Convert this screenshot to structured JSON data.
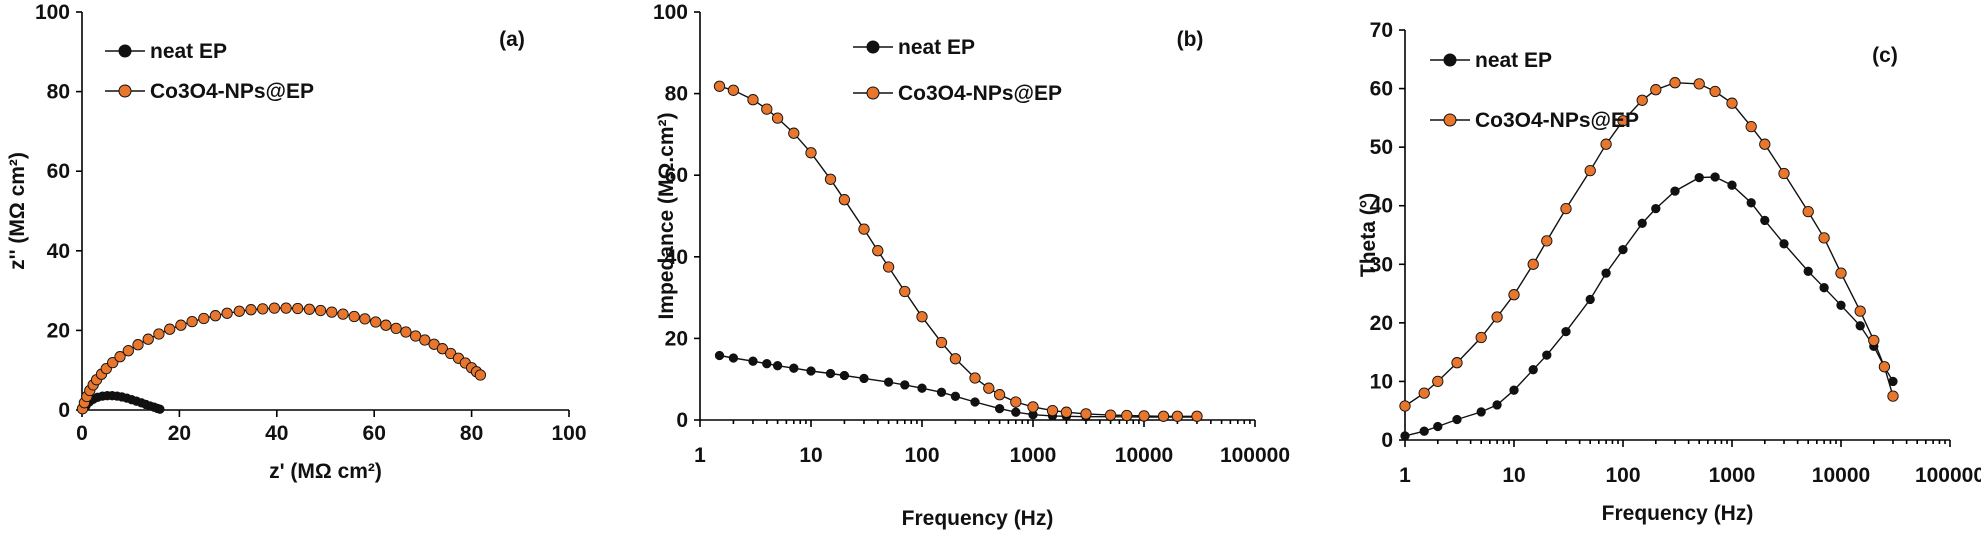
{
  "chart_data": [
    {
      "type": "scatter",
      "panel_label": "(a)",
      "xlabel": "z' (MΩ cm²)",
      "ylabel": "z'' (MΩ cm²)",
      "xlim": [
        0,
        100
      ],
      "ylim": [
        0,
        100
      ],
      "xscale": "linear",
      "xticks": [
        0,
        20,
        40,
        60,
        80,
        100
      ],
      "yticks": [
        0,
        20,
        40,
        60,
        80,
        100
      ],
      "grid": false,
      "legend": "top-left",
      "series": [
        {
          "name": "neat EP",
          "color": "#111111",
          "x": [
            0.2,
            0.8,
            1.5,
            2.3,
            3.2,
            4.2,
            5.2,
            6.2,
            7.2,
            8.2,
            9.2,
            10.2,
            11.2,
            12.2,
            13.1,
            14.0,
            14.8,
            15.5,
            16.0
          ],
          "y": [
            0.2,
            1.0,
            2.0,
            2.7,
            3.2,
            3.5,
            3.6,
            3.6,
            3.5,
            3.3,
            3.0,
            2.6,
            2.2,
            1.8,
            1.4,
            1.0,
            0.7,
            0.4,
            0.2
          ]
        },
        {
          "name": "Co3O4-NPs@EP",
          "color": "#e8762c",
          "x": [
            0.1,
            0.5,
            1.0,
            1.6,
            2.3,
            3.0,
            4.0,
            5.0,
            6.3,
            7.8,
            9.5,
            11.5,
            13.6,
            15.8,
            18.0,
            20.3,
            22.6,
            25.0,
            27.4,
            29.8,
            32.3,
            34.7,
            37.1,
            39.5,
            41.9,
            44.3,
            46.7,
            49.0,
            51.3,
            53.6,
            55.9,
            58.1,
            60.3,
            62.4,
            64.5,
            66.5,
            68.5,
            70.4,
            72.3,
            74.0,
            75.7,
            77.3,
            78.7,
            80.0,
            81.0,
            81.8
          ],
          "y": [
            0.3,
            1.8,
            3.4,
            4.9,
            6.3,
            7.6,
            9.0,
            10.4,
            11.9,
            13.4,
            14.9,
            16.4,
            17.8,
            19.1,
            20.3,
            21.3,
            22.2,
            23.0,
            23.7,
            24.3,
            24.8,
            25.2,
            25.4,
            25.6,
            25.6,
            25.5,
            25.3,
            25.0,
            24.6,
            24.1,
            23.5,
            22.9,
            22.1,
            21.3,
            20.5,
            19.6,
            18.6,
            17.6,
            16.5,
            15.4,
            14.2,
            13.0,
            11.8,
            10.6,
            9.6,
            8.8
          ]
        }
      ]
    },
    {
      "type": "scatter",
      "panel_label": "(b)",
      "xlabel": "Frequency (Hz)",
      "ylabel": "Impedance (MΩ.cm²)",
      "xlim": [
        1,
        100000
      ],
      "ylim": [
        0,
        100
      ],
      "xscale": "log",
      "xticks": [
        1,
        10,
        100,
        1000,
        10000,
        100000
      ],
      "yticks": [
        0,
        20,
        40,
        60,
        80,
        100
      ],
      "grid": false,
      "legend": "top-right",
      "series": [
        {
          "name": "neat EP",
          "color": "#111111",
          "x": [
            1.5,
            2,
            3,
            4,
            5,
            7,
            10,
            15,
            20,
            30,
            50,
            70,
            100,
            150,
            200,
            300,
            500,
            700,
            1000,
            1500,
            2000,
            3000,
            5000,
            10000,
            20000,
            30000
          ],
          "y": [
            15.8,
            15.2,
            14.4,
            13.8,
            13.3,
            12.7,
            12.0,
            11.4,
            10.9,
            10.2,
            9.3,
            8.6,
            7.8,
            6.8,
            5.8,
            4.4,
            2.8,
            1.9,
            1.3,
            1.0,
            0.9,
            0.8,
            0.8,
            0.7,
            0.7,
            0.7
          ]
        },
        {
          "name": "Co3O4-NPs@EP",
          "color": "#e8762c",
          "x": [
            1.5,
            2,
            3,
            4,
            5,
            7,
            10,
            15,
            20,
            30,
            40,
            50,
            70,
            100,
            150,
            200,
            300,
            400,
            500,
            700,
            1000,
            1500,
            2000,
            3000,
            5000,
            7000,
            10000,
            15000,
            20000,
            30000
          ],
          "y": [
            81.8,
            80.8,
            78.5,
            76.2,
            74.0,
            70.3,
            65.5,
            59.0,
            54.0,
            46.8,
            41.5,
            37.5,
            31.5,
            25.3,
            19.0,
            15.0,
            10.3,
            7.8,
            6.2,
            4.4,
            3.2,
            2.3,
            1.9,
            1.5,
            1.2,
            1.1,
            1.0,
            0.9,
            0.9,
            0.9
          ]
        }
      ]
    },
    {
      "type": "scatter",
      "panel_label": "(c)",
      "xlabel": "Frequency (Hz)",
      "ylabel": "Theta (°)",
      "xlim": [
        1,
        100000
      ],
      "ylim": [
        0,
        70
      ],
      "xscale": "log",
      "xticks": [
        1,
        10,
        100,
        1000,
        10000,
        100000
      ],
      "yticks": [
        0,
        10,
        20,
        30,
        40,
        50,
        60,
        70
      ],
      "grid": false,
      "legend": "top-left",
      "series": [
        {
          "name": "neat EP",
          "color": "#111111",
          "x": [
            1,
            1.5,
            2,
            3,
            5,
            7,
            10,
            15,
            20,
            30,
            50,
            70,
            100,
            150,
            200,
            300,
            500,
            700,
            1000,
            1500,
            2000,
            3000,
            5000,
            7000,
            10000,
            15000,
            20000,
            25000,
            30000
          ],
          "y": [
            0.7,
            1.5,
            2.3,
            3.5,
            4.8,
            6.0,
            8.5,
            12.0,
            14.5,
            18.5,
            24.0,
            28.5,
            32.5,
            37.0,
            39.5,
            42.5,
            44.8,
            44.9,
            43.5,
            40.5,
            37.5,
            33.5,
            28.8,
            26.0,
            23.0,
            19.5,
            16.0,
            12.5,
            10.0
          ]
        },
        {
          "name": "Co3O4-NPs@EP",
          "color": "#e8762c",
          "x": [
            1,
            1.5,
            2,
            3,
            5,
            7,
            10,
            15,
            20,
            30,
            50,
            70,
            100,
            150,
            200,
            300,
            500,
            700,
            1000,
            1500,
            2000,
            3000,
            5000,
            7000,
            10000,
            15000,
            20000,
            25000,
            30000
          ],
          "y": [
            5.8,
            8.0,
            10.0,
            13.2,
            17.5,
            21.0,
            24.8,
            30.0,
            34.0,
            39.5,
            46.0,
            50.5,
            54.5,
            58.0,
            59.8,
            61.0,
            60.8,
            59.5,
            57.5,
            53.5,
            50.5,
            45.5,
            39.0,
            34.5,
            28.5,
            22.0,
            17.0,
            12.5,
            7.5
          ]
        }
      ]
    }
  ]
}
